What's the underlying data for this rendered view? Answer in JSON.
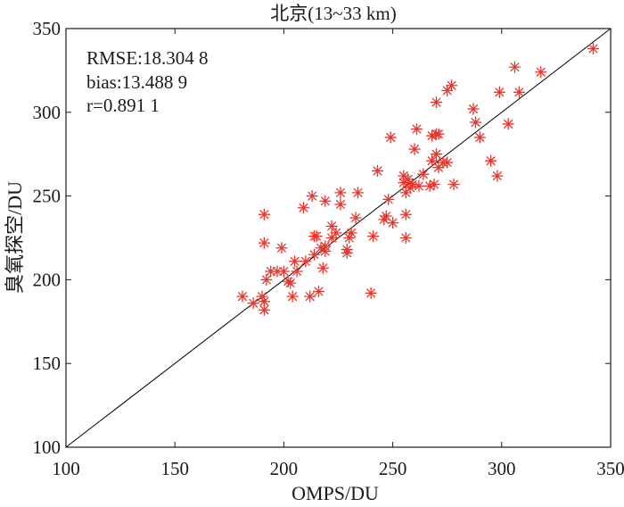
{
  "chart_data": {
    "type": "scatter",
    "title": "北京(13~33 km)",
    "xlabel": "OMPS/DU",
    "ylabel": "臭氧探空/DU",
    "xlim": [
      100,
      350
    ],
    "ylim": [
      100,
      350
    ],
    "xticks": [
      "100",
      "150",
      "200",
      "250",
      "300",
      "350"
    ],
    "yticks": [
      "100",
      "150",
      "200",
      "250",
      "300",
      "350"
    ],
    "grid": false,
    "marker": "asterisk",
    "marker_color": "#e8352e",
    "line_color": "#000000",
    "reference_line": {
      "x": [
        100,
        350
      ],
      "y": [
        100,
        350
      ]
    },
    "stats": [
      "RMSE:18.304 8",
      "bias:13.488 9",
      "r=0.891 1"
    ],
    "points": [
      [
        181,
        190
      ],
      [
        186,
        186
      ],
      [
        190,
        190
      ],
      [
        191,
        182
      ],
      [
        191,
        187
      ],
      [
        191,
        239
      ],
      [
        191,
        222
      ],
      [
        192,
        200
      ],
      [
        194,
        205
      ],
      [
        197,
        205
      ],
      [
        199,
        219
      ],
      [
        200,
        205
      ],
      [
        202,
        199
      ],
      [
        203,
        198
      ],
      [
        204,
        190
      ],
      [
        205,
        211
      ],
      [
        206,
        205
      ],
      [
        209,
        243
      ],
      [
        210,
        211
      ],
      [
        212,
        190
      ],
      [
        213,
        250
      ],
      [
        214,
        226
      ],
      [
        214,
        215
      ],
      [
        215,
        226
      ],
      [
        216,
        193
      ],
      [
        217,
        219
      ],
      [
        218,
        207
      ],
      [
        219,
        217
      ],
      [
        219,
        220
      ],
      [
        219,
        247
      ],
      [
        222,
        225
      ],
      [
        222,
        232
      ],
      [
        224,
        228
      ],
      [
        226,
        252
      ],
      [
        226,
        245
      ],
      [
        229,
        218
      ],
      [
        229,
        216
      ],
      [
        230,
        225
      ],
      [
        231,
        228
      ],
      [
        233,
        237
      ],
      [
        234,
        252
      ],
      [
        240,
        192
      ],
      [
        241,
        226
      ],
      [
        243,
        265
      ],
      [
        246,
        236
      ],
      [
        247,
        238
      ],
      [
        248,
        248
      ],
      [
        249,
        285
      ],
      [
        250,
        234
      ],
      [
        255,
        262
      ],
      [
        255,
        258
      ],
      [
        256,
        252
      ],
      [
        256,
        239
      ],
      [
        256,
        225
      ],
      [
        257,
        260
      ],
      [
        258,
        255
      ],
      [
        259,
        257
      ],
      [
        260,
        278
      ],
      [
        261,
        290
      ],
      [
        262,
        256
      ],
      [
        264,
        263
      ],
      [
        267,
        256
      ],
      [
        268,
        271
      ],
      [
        268,
        286
      ],
      [
        269,
        257
      ],
      [
        270,
        287
      ],
      [
        270,
        306
      ],
      [
        270,
        275
      ],
      [
        271,
        287
      ],
      [
        271,
        267
      ],
      [
        273,
        270
      ],
      [
        275,
        270
      ],
      [
        275,
        313
      ],
      [
        277,
        316
      ],
      [
        278,
        257
      ],
      [
        287,
        302
      ],
      [
        288,
        294
      ],
      [
        290,
        285
      ],
      [
        295,
        271
      ],
      [
        298,
        262
      ],
      [
        299,
        312
      ],
      [
        303,
        293
      ],
      [
        306,
        327
      ],
      [
        308,
        312
      ],
      [
        318,
        324
      ],
      [
        342,
        338
      ]
    ]
  }
}
